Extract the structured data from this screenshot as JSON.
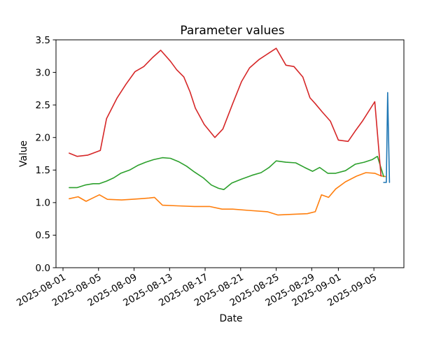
{
  "chart_data": {
    "type": "line",
    "title": "Parameter values",
    "xlabel": "Date",
    "ylabel": "Value",
    "ylim": [
      0.0,
      3.5
    ],
    "grid": false,
    "legend": "none",
    "x_unit": "days since 2025-08-01",
    "x_tick_rotation_deg": 30,
    "y_ticks": [
      "0.0",
      "0.5",
      "1.0",
      "1.5",
      "2.0",
      "2.5",
      "3.0",
      "3.5"
    ],
    "x_ticks": [
      {
        "label": "2025-08-01",
        "day": 0
      },
      {
        "label": "2025-08-05",
        "day": 4
      },
      {
        "label": "2025-08-09",
        "day": 8
      },
      {
        "label": "2025-08-13",
        "day": 12
      },
      {
        "label": "2025-08-17",
        "day": 16
      },
      {
        "label": "2025-08-21",
        "day": 20
      },
      {
        "label": "2025-08-25",
        "day": 24
      },
      {
        "label": "2025-08-29",
        "day": 28
      },
      {
        "label": "2025-09-01",
        "day": 31
      },
      {
        "label": "2025-09-05",
        "day": 35
      }
    ],
    "series": [
      {
        "name": "orange",
        "color": "#ff7f0e",
        "points": [
          [
            0.7,
            1.06
          ],
          [
            1.7,
            1.09
          ],
          [
            2.6,
            1.02
          ],
          [
            4.1,
            1.12
          ],
          [
            5.0,
            1.05
          ],
          [
            6.6,
            1.04
          ],
          [
            7.7,
            1.05
          ],
          [
            8.7,
            1.06
          ],
          [
            9.7,
            1.07
          ],
          [
            10.3,
            1.08
          ],
          [
            11.2,
            0.96
          ],
          [
            12.9,
            0.95
          ],
          [
            14.8,
            0.94
          ],
          [
            16.5,
            0.94
          ],
          [
            17.9,
            0.9
          ],
          [
            19.1,
            0.9
          ],
          [
            20.9,
            0.88
          ],
          [
            23.0,
            0.86
          ],
          [
            24.2,
            0.81
          ],
          [
            25.9,
            0.82
          ],
          [
            27.5,
            0.83
          ],
          [
            28.4,
            0.86
          ],
          [
            29.1,
            1.12
          ],
          [
            29.9,
            1.08
          ],
          [
            30.7,
            1.21
          ],
          [
            31.8,
            1.32
          ],
          [
            33.1,
            1.41
          ],
          [
            34.1,
            1.46
          ],
          [
            35.1,
            1.45
          ],
          [
            35.8,
            1.41
          ],
          [
            36.3,
            1.4
          ]
        ]
      },
      {
        "name": "green",
        "color": "#2ca02c",
        "points": [
          [
            0.7,
            1.23
          ],
          [
            1.6,
            1.23
          ],
          [
            2.5,
            1.27
          ],
          [
            3.4,
            1.29
          ],
          [
            4.1,
            1.29
          ],
          [
            4.9,
            1.33
          ],
          [
            5.7,
            1.38
          ],
          [
            6.5,
            1.45
          ],
          [
            7.5,
            1.5
          ],
          [
            8.4,
            1.57
          ],
          [
            9.3,
            1.62
          ],
          [
            10.2,
            1.66
          ],
          [
            11.2,
            1.69
          ],
          [
            12.1,
            1.68
          ],
          [
            13.0,
            1.63
          ],
          [
            13.9,
            1.56
          ],
          [
            14.8,
            1.47
          ],
          [
            15.8,
            1.38
          ],
          [
            16.7,
            1.27
          ],
          [
            17.5,
            1.22
          ],
          [
            18.1,
            1.2
          ],
          [
            19.0,
            1.3
          ],
          [
            20.1,
            1.36
          ],
          [
            21.3,
            1.42
          ],
          [
            22.3,
            1.46
          ],
          [
            23.2,
            1.54
          ],
          [
            24.0,
            1.64
          ],
          [
            25.1,
            1.62
          ],
          [
            26.2,
            1.61
          ],
          [
            27.2,
            1.54
          ],
          [
            28.1,
            1.48
          ],
          [
            28.9,
            1.54
          ],
          [
            29.8,
            1.45
          ],
          [
            30.7,
            1.45
          ],
          [
            31.8,
            1.49
          ],
          [
            32.9,
            1.59
          ],
          [
            33.9,
            1.62
          ],
          [
            34.8,
            1.66
          ],
          [
            35.4,
            1.71
          ],
          [
            36.1,
            1.4
          ]
        ]
      },
      {
        "name": "red",
        "color": "#d62728",
        "points": [
          [
            0.7,
            1.76
          ],
          [
            1.6,
            1.71
          ],
          [
            2.8,
            1.73
          ],
          [
            4.2,
            1.8
          ],
          [
            4.9,
            2.29
          ],
          [
            6.1,
            2.61
          ],
          [
            7.1,
            2.82
          ],
          [
            8.1,
            3.01
          ],
          [
            9.1,
            3.09
          ],
          [
            10.1,
            3.23
          ],
          [
            11.0,
            3.34
          ],
          [
            12.1,
            3.17
          ],
          [
            12.8,
            3.04
          ],
          [
            13.6,
            2.93
          ],
          [
            14.3,
            2.7
          ],
          [
            14.9,
            2.45
          ],
          [
            15.9,
            2.2
          ],
          [
            17.1,
            2.0
          ],
          [
            18.0,
            2.13
          ],
          [
            19.1,
            2.52
          ],
          [
            20.1,
            2.86
          ],
          [
            21.0,
            3.07
          ],
          [
            22.1,
            3.2
          ],
          [
            23.1,
            3.29
          ],
          [
            24.0,
            3.37
          ],
          [
            25.1,
            3.11
          ],
          [
            26.0,
            3.09
          ],
          [
            27.0,
            2.93
          ],
          [
            27.8,
            2.61
          ],
          [
            28.4,
            2.52
          ],
          [
            29.2,
            2.39
          ],
          [
            30.1,
            2.25
          ],
          [
            31.0,
            1.96
          ],
          [
            32.1,
            1.94
          ],
          [
            32.9,
            2.1
          ],
          [
            33.7,
            2.25
          ],
          [
            35.1,
            2.55
          ],
          [
            35.8,
            1.41
          ]
        ]
      },
      {
        "name": "blue",
        "color": "#1f77b4",
        "points": [
          [
            36.1,
            1.31
          ],
          [
            36.4,
            1.31
          ],
          [
            36.55,
            2.69
          ],
          [
            36.75,
            1.31
          ]
        ]
      }
    ]
  }
}
